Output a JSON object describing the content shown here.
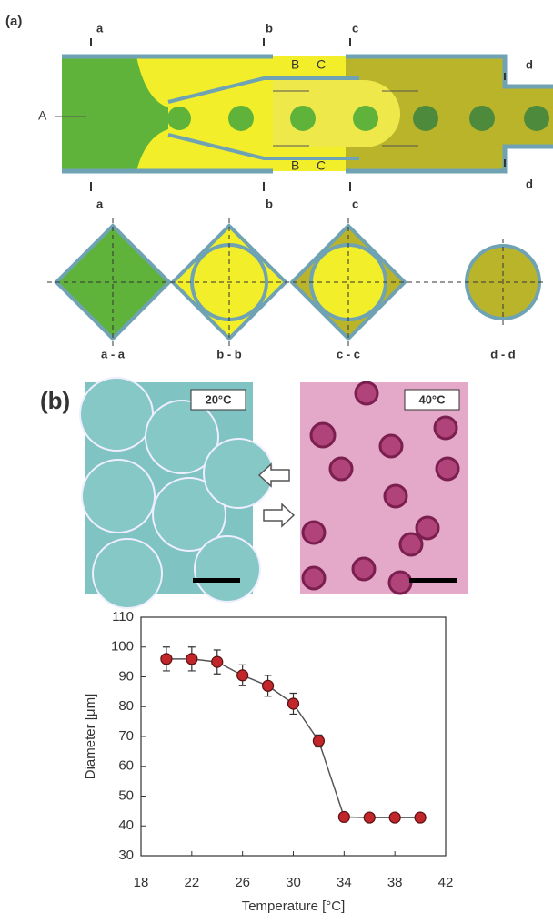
{
  "panel_a": {
    "label": "(a)",
    "section_markers": [
      "a",
      "b",
      "c",
      "d"
    ],
    "callouts": [
      "A",
      "B",
      "C"
    ],
    "sections": [
      "a - a",
      "b - b",
      "c - c",
      "d - d"
    ]
  },
  "panel_b": {
    "label": "(b)",
    "micrographs": [
      "20°C",
      "40°C"
    ]
  },
  "chart_data": {
    "type": "line",
    "xlabel": "Temperature [°C]",
    "ylabel": "Diameter [μm]",
    "x": [
      20,
      22,
      24,
      26,
      28,
      30,
      32,
      34,
      36,
      38,
      40
    ],
    "series": [
      {
        "color": "#c0262a",
        "values": [
          96,
          96,
          95,
          90.5,
          87,
          81,
          68.5,
          43,
          42.8,
          42.8,
          42.8
        ],
        "errors": [
          4,
          4,
          4,
          3.5,
          3.5,
          3.5,
          2,
          1,
          1,
          1,
          1
        ]
      }
    ],
    "xlim": [
      18,
      42
    ],
    "ylim": [
      30,
      110
    ],
    "xticks": [
      18,
      22,
      26,
      30,
      34,
      38,
      42
    ],
    "yticks": [
      30,
      40,
      50,
      60,
      70,
      80,
      90,
      100,
      110
    ]
  }
}
